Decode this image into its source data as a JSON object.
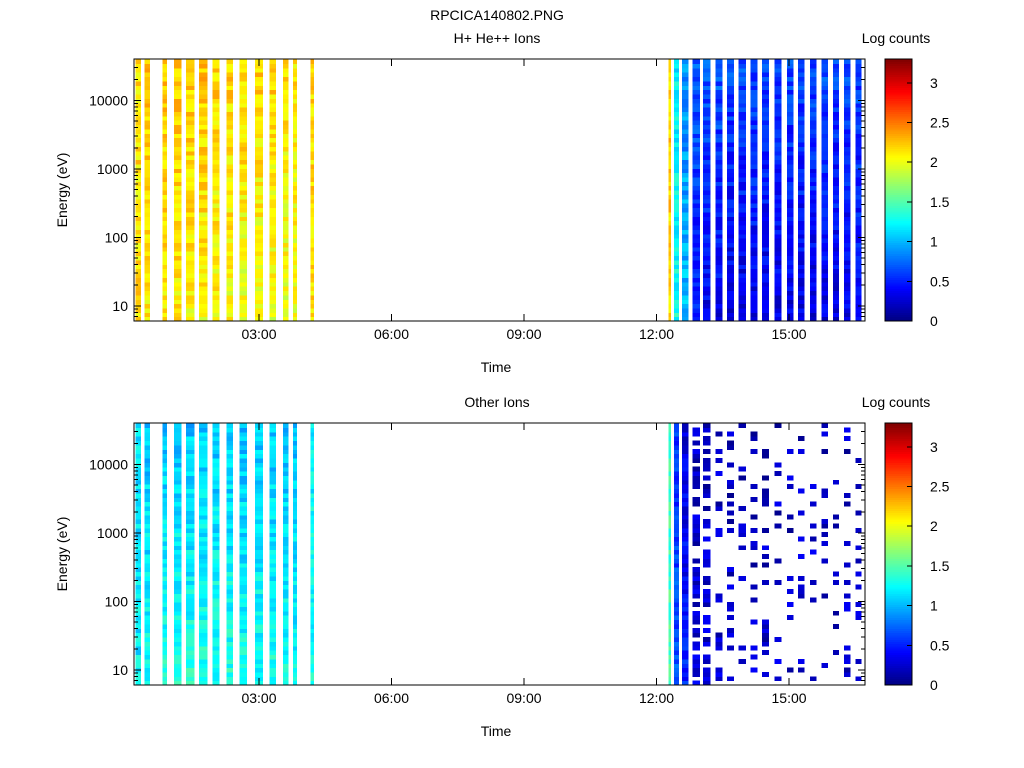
{
  "figure_title": "RPCICA140802.PNG",
  "chart_data": [
    {
      "type": "heatmap",
      "title": "H+ He++ Ions",
      "xlabel": "Time",
      "ylabel": "Energy (eV)",
      "y_scale": "log",
      "ylim": [
        6,
        40000
      ],
      "xlim_hours": [
        0.17,
        16.72
      ],
      "x_ticks": [
        "03:00",
        "06:00",
        "09:00",
        "12:00",
        "15:00"
      ],
      "x_tick_hours": [
        3,
        6,
        9,
        12,
        15
      ],
      "y_ticks": [
        "10",
        "100",
        "1000",
        "10000"
      ],
      "y_tick_values": [
        10,
        100,
        1000,
        10000
      ],
      "colorbar_label": "Log counts",
      "colorbar_range": [
        0,
        3.3
      ],
      "colorbar_ticks": [
        "0",
        "0.5",
        "1",
        "1.5",
        "2",
        "2.5",
        "3"
      ],
      "colorbar_tick_values": [
        0,
        0.5,
        1,
        1.5,
        2,
        2.5,
        3
      ],
      "colormap": "jet",
      "data_gap_hours": [
        4.25,
        12.25
      ],
      "scans": [
        {
          "start": 0.2,
          "end": 0.33,
          "level": 2.15,
          "hi_level": 2.15
        },
        {
          "start": 0.41,
          "end": 0.53,
          "level": 2.1,
          "hi_level": 2.25
        },
        {
          "start": 0.82,
          "end": 0.92,
          "level": 2.1,
          "hi_level": 2.25
        },
        {
          "start": 1.08,
          "end": 1.24,
          "level": 2.1,
          "hi_level": 2.25
        },
        {
          "start": 1.35,
          "end": 1.54,
          "level": 2.05,
          "hi_level": 2.25
        },
        {
          "start": 1.64,
          "end": 1.83,
          "level": 2.05,
          "hi_level": 2.25
        },
        {
          "start": 1.95,
          "end": 2.11,
          "level": 2.05,
          "hi_level": 2.2
        },
        {
          "start": 2.26,
          "end": 2.41,
          "level": 2.05,
          "hi_level": 2.2
        },
        {
          "start": 2.56,
          "end": 2.73,
          "level": 2.0,
          "hi_level": 2.2
        },
        {
          "start": 2.91,
          "end": 3.09,
          "level": 2.0,
          "hi_level": 2.2
        },
        {
          "start": 3.24,
          "end": 3.39,
          "level": 2.0,
          "hi_level": 2.2
        },
        {
          "start": 3.54,
          "end": 3.67,
          "level": 2.0,
          "hi_level": 2.15
        },
        {
          "start": 3.77,
          "end": 3.86,
          "level": 2.0,
          "hi_level": 2.15
        },
        {
          "start": 4.17,
          "end": 4.25,
          "level": 2.15,
          "hi_level": 2.2
        },
        {
          "start": 12.27,
          "end": 12.33,
          "level": 2.2,
          "hi_level": 2.2
        },
        {
          "start": 12.39,
          "end": 12.51,
          "level": 1.3,
          "hi_level": 1.2
        },
        {
          "start": 12.58,
          "end": 12.72,
          "level": 1.05,
          "hi_level": 0.85
        },
        {
          "start": 12.81,
          "end": 12.98,
          "level": 0.45,
          "hi_level": 0.75
        },
        {
          "start": 13.05,
          "end": 13.22,
          "level": 0.35,
          "hi_level": 0.7
        },
        {
          "start": 13.34,
          "end": 13.49,
          "level": 0.35,
          "hi_level": 0.7
        },
        {
          "start": 13.59,
          "end": 13.75,
          "level": 0.3,
          "hi_level": 0.65
        },
        {
          "start": 13.86,
          "end": 14.02,
          "level": 0.3,
          "hi_level": 0.65
        },
        {
          "start": 14.13,
          "end": 14.29,
          "level": 0.3,
          "hi_level": 0.65
        },
        {
          "start": 14.39,
          "end": 14.55,
          "level": 0.3,
          "hi_level": 0.65
        },
        {
          "start": 14.67,
          "end": 14.83,
          "level": 0.3,
          "hi_level": 0.65
        },
        {
          "start": 14.95,
          "end": 15.1,
          "level": 0.3,
          "hi_level": 0.65
        },
        {
          "start": 15.2,
          "end": 15.35,
          "level": 0.3,
          "hi_level": 0.65
        },
        {
          "start": 15.48,
          "end": 15.62,
          "level": 0.3,
          "hi_level": 0.65
        },
        {
          "start": 15.74,
          "end": 15.88,
          "level": 0.3,
          "hi_level": 0.65
        },
        {
          "start": 16.0,
          "end": 16.13,
          "level": 0.3,
          "hi_level": 0.65
        },
        {
          "start": 16.25,
          "end": 16.39,
          "level": 0.3,
          "hi_level": 0.65
        },
        {
          "start": 16.51,
          "end": 16.64,
          "level": 0.35,
          "hi_level": 0.65
        }
      ]
    },
    {
      "type": "heatmap",
      "title": "Other Ions",
      "xlabel": "Time",
      "ylabel": "Energy (eV)",
      "y_scale": "log",
      "ylim": [
        6,
        40000
      ],
      "xlim_hours": [
        0.17,
        16.72
      ],
      "x_ticks": [
        "03:00",
        "06:00",
        "09:00",
        "12:00",
        "15:00"
      ],
      "x_tick_hours": [
        3,
        6,
        9,
        12,
        15
      ],
      "y_ticks": [
        "10",
        "100",
        "1000",
        "10000"
      ],
      "y_tick_values": [
        10,
        100,
        1000,
        10000
      ],
      "colorbar_label": "Log counts",
      "colorbar_range": [
        0,
        3.3
      ],
      "colorbar_ticks": [
        "0",
        "0.5",
        "1",
        "1.5",
        "2",
        "2.5",
        "3"
      ],
      "colorbar_tick_values": [
        0,
        0.5,
        1,
        1.5,
        2,
        2.5,
        3
      ],
      "colormap": "jet",
      "data_gap_hours": [
        4.25,
        12.25
      ],
      "scans": [
        {
          "start": 0.2,
          "end": 0.33,
          "level": 1.2,
          "hi_level": 1.15
        },
        {
          "start": 0.41,
          "end": 0.53,
          "level": 1.3,
          "hi_level": 1.05
        },
        {
          "start": 0.82,
          "end": 0.92,
          "level": 1.35,
          "hi_level": 1.05
        },
        {
          "start": 1.08,
          "end": 1.24,
          "level": 1.35,
          "hi_level": 1.05
        },
        {
          "start": 1.35,
          "end": 1.54,
          "level": 1.35,
          "hi_level": 1.05
        },
        {
          "start": 1.64,
          "end": 1.83,
          "level": 1.35,
          "hi_level": 1.05
        },
        {
          "start": 1.95,
          "end": 2.11,
          "level": 1.35,
          "hi_level": 1.05
        },
        {
          "start": 2.26,
          "end": 2.41,
          "level": 1.35,
          "hi_level": 1.05
        },
        {
          "start": 2.56,
          "end": 2.73,
          "level": 1.3,
          "hi_level": 1.05
        },
        {
          "start": 2.91,
          "end": 3.09,
          "level": 1.3,
          "hi_level": 1.05
        },
        {
          "start": 3.24,
          "end": 3.39,
          "level": 1.3,
          "hi_level": 1.05
        },
        {
          "start": 3.54,
          "end": 3.67,
          "level": 1.3,
          "hi_level": 1.05
        },
        {
          "start": 3.77,
          "end": 3.86,
          "level": 1.25,
          "hi_level": 1.05
        },
        {
          "start": 4.17,
          "end": 4.25,
          "level": 1.3,
          "hi_level": 1.2
        },
        {
          "start": 12.27,
          "end": 12.33,
          "level": 1.5,
          "hi_level": 1.4
        },
        {
          "start": 12.39,
          "end": 12.51,
          "level": 0.7,
          "hi_level": 0.55
        },
        {
          "start": 12.58,
          "end": 12.72,
          "level": 0.5,
          "hi_level": 0.3
        },
        {
          "start": 12.81,
          "end": 12.98,
          "level": 0.3,
          "hi_level": 0.2,
          "sparse": 0.35
        },
        {
          "start": 13.05,
          "end": 13.22,
          "level": 0.25,
          "hi_level": 0.2,
          "sparse": 0.45
        },
        {
          "start": 13.34,
          "end": 13.49,
          "level": 0.25,
          "hi_level": 0.2,
          "sparse": 0.6
        },
        {
          "start": 13.59,
          "end": 13.75,
          "level": 0.25,
          "hi_level": 0.2,
          "sparse": 0.7
        },
        {
          "start": 13.86,
          "end": 14.02,
          "level": 0.25,
          "hi_level": 0.2,
          "sparse": 0.75
        },
        {
          "start": 14.13,
          "end": 14.29,
          "level": 0.25,
          "hi_level": 0.2,
          "sparse": 0.78
        },
        {
          "start": 14.39,
          "end": 14.55,
          "level": 0.25,
          "hi_level": 0.2,
          "sparse": 0.78
        },
        {
          "start": 14.67,
          "end": 14.83,
          "level": 0.25,
          "hi_level": 0.2,
          "sparse": 0.78
        },
        {
          "start": 14.95,
          "end": 15.1,
          "level": 0.25,
          "hi_level": 0.2,
          "sparse": 0.75
        },
        {
          "start": 15.2,
          "end": 15.35,
          "level": 0.25,
          "hi_level": 0.2,
          "sparse": 0.78
        },
        {
          "start": 15.48,
          "end": 15.62,
          "level": 0.25,
          "hi_level": 0.2,
          "sparse": 0.8
        },
        {
          "start": 15.74,
          "end": 15.88,
          "level": 0.25,
          "hi_level": 0.2,
          "sparse": 0.8
        },
        {
          "start": 16.0,
          "end": 16.13,
          "level": 0.25,
          "hi_level": 0.2,
          "sparse": 0.8
        },
        {
          "start": 16.25,
          "end": 16.39,
          "level": 0.25,
          "hi_level": 0.2,
          "sparse": 0.8
        },
        {
          "start": 16.51,
          "end": 16.64,
          "level": 0.25,
          "hi_level": 0.2,
          "sparse": 0.75
        }
      ]
    }
  ]
}
